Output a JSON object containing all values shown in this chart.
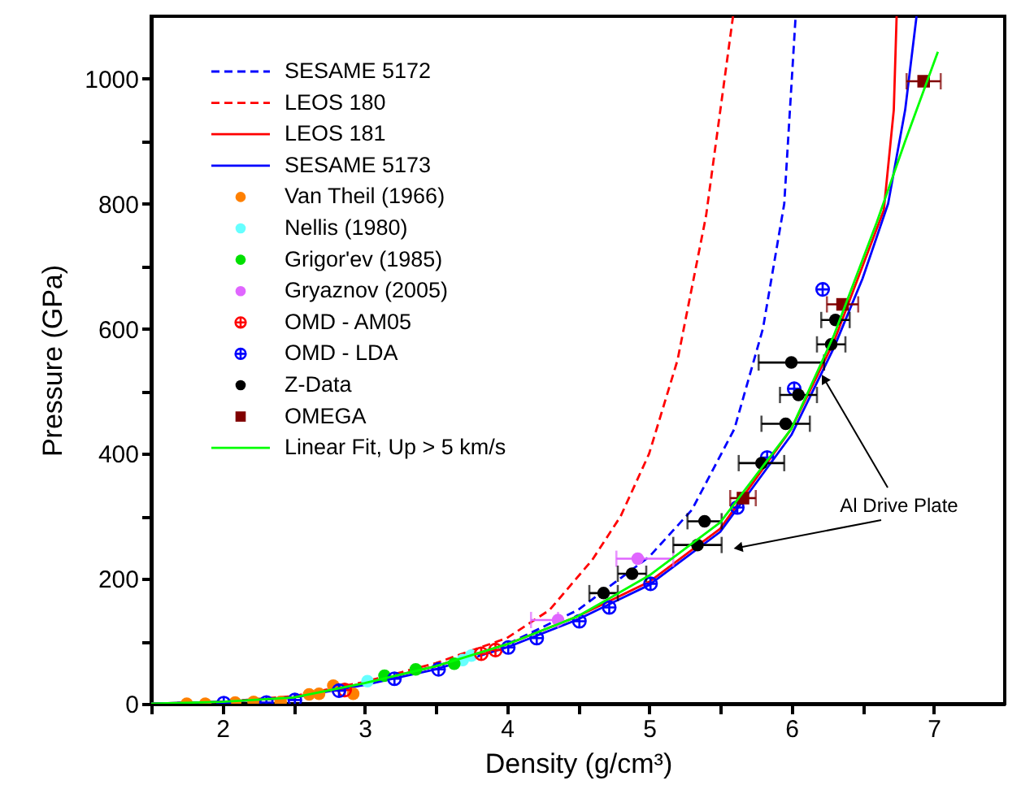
{
  "chart_data": {
    "type": "scatter",
    "xlabel": "Density (g/cm³)",
    "ylabel": "Pressure (GPa)",
    "xlim": [
      1.5,
      7.5
    ],
    "ylim": [
      0,
      1100
    ],
    "xticks": [
      {
        "value": 1.5,
        "label": null
      },
      2,
      {
        "value": 2.5,
        "label": null
      },
      3,
      {
        "value": 3.5,
        "label": null
      },
      4,
      {
        "value": 4.5,
        "label": null
      },
      5,
      {
        "value": 5.5,
        "label": null
      },
      6,
      {
        "value": 6.5,
        "label": null
      },
      7
    ],
    "yticks": [
      0,
      {
        "value": 100,
        "label": null
      },
      200,
      {
        "value": 300,
        "label": null
      },
      400,
      {
        "value": 500,
        "label": null
      },
      600,
      {
        "value": 700,
        "label": null
      },
      800,
      {
        "value": 900,
        "label": null
      },
      1000
    ],
    "grid": false,
    "legend": "top left",
    "annotations": [
      {
        "text": "Al Drive Plate",
        "x": 6.23,
        "y": 520
      }
    ],
    "series": [
      {
        "name": "SESAME 5172",
        "type": "line",
        "line_style": "dashed",
        "color": "#0000ff",
        "x": [
          1.5,
          2,
          2.5,
          3,
          3.5,
          4,
          4.5,
          5,
          5.3,
          5.6,
          5.8,
          5.95,
          6.03
        ],
        "values": [
          0,
          3,
          10,
          33,
          60,
          95,
          150,
          235,
          310,
          440,
          600,
          800,
          1100
        ]
      },
      {
        "name": "LEOS 180",
        "type": "line",
        "line_style": "dashed",
        "color": "#ff0000",
        "x": [
          1.5,
          2,
          2.5,
          3,
          3.5,
          4,
          4.3,
          4.6,
          4.8,
          5.0,
          5.2,
          5.4,
          5.59
        ],
        "values": [
          0,
          3,
          12,
          35,
          65,
          105,
          150,
          230,
          300,
          400,
          550,
          780,
          1100
        ]
      },
      {
        "name": "LEOS 181",
        "type": "line",
        "line_style": "solid",
        "color": "#ff0000",
        "x": [
          1.5,
          2,
          2.5,
          3,
          3.5,
          4,
          4.5,
          5,
          5.5,
          6,
          6.3,
          6.5,
          6.65,
          6.72,
          6.74
        ],
        "values": [
          0,
          3,
          10,
          33,
          60,
          95,
          140,
          195,
          280,
          440,
          580,
          700,
          790,
          950,
          1100
        ]
      },
      {
        "name": "SESAME 5173",
        "type": "line",
        "line_style": "solid",
        "color": "#0000ff",
        "x": [
          1.5,
          2,
          2.5,
          3,
          3.5,
          4,
          4.5,
          5,
          5.5,
          6,
          6.3,
          6.5,
          6.68,
          6.8,
          6.88
        ],
        "values": [
          0,
          3,
          10,
          30,
          55,
          90,
          135,
          190,
          275,
          430,
          570,
          680,
          800,
          950,
          1100
        ]
      },
      {
        "name": "Van Theil (1966)",
        "type": "scatter",
        "marker": "circle",
        "color": "#ff8000",
        "x": [
          1.75,
          1.88,
          2.09,
          2.22,
          2.41,
          2.61,
          2.68,
          2.78,
          2.92
        ],
        "values": [
          0,
          0,
          2,
          3,
          3,
          15,
          16,
          29,
          16
        ]
      },
      {
        "name": "Nellis (1980)",
        "type": "scatter",
        "marker": "circle",
        "color": "#66ffff",
        "x": [
          3.02,
          3.69,
          3.75
        ],
        "values": [
          36,
          70,
          77
        ]
      },
      {
        "name": "Grigor'ev (1985)",
        "type": "scatter",
        "marker": "circle",
        "color": "#00e000",
        "x": [
          3.14,
          3.36,
          3.63
        ],
        "values": [
          45,
          55,
          64
        ]
      },
      {
        "name": "Gryaznov (2005)",
        "type": "scatter",
        "marker": "circle",
        "color": "#e066ff",
        "x": [
          4.36,
          4.92
        ],
        "values": [
          134,
          232
        ],
        "xerrors": [
          [
            4.17,
            4.36
          ],
          [
            4.77,
            5.17
          ]
        ]
      },
      {
        "name": "OMD - AM05",
        "type": "scatter",
        "marker": "cross",
        "color": "#ff0000",
        "x": [
          2.86,
          3.82,
          3.92
        ],
        "values": [
          22,
          80,
          86
        ]
      },
      {
        "name": "OMD - LDA",
        "type": "scatter",
        "marker": "cross",
        "color": "#0000ff",
        "x": [
          2.01,
          2.31,
          2.51,
          2.82,
          3.21,
          3.52,
          4.01,
          4.21,
          4.51,
          4.72,
          5.01,
          5.62,
          5.83,
          6.02,
          6.22
        ],
        "values": [
          1,
          2,
          6,
          21,
          40,
          55,
          90,
          105,
          132,
          154,
          192,
          314,
          394,
          504,
          663
        ]
      },
      {
        "name": "Z-Data",
        "type": "scatter",
        "marker": "circle",
        "color": "#000000",
        "x": [
          4.68,
          4.88,
          5.34,
          5.39,
          5.79,
          5.96,
          6.05,
          6.0,
          6.28,
          6.31
        ],
        "values": [
          177,
          208,
          254,
          292,
          385,
          448,
          494,
          546,
          575,
          614
        ],
        "xerrors": [
          0.1,
          0.1,
          0.17,
          0.12,
          0.16,
          0.17,
          0.13,
          0.23,
          0.1,
          0.1
        ]
      },
      {
        "name": "OMEGA",
        "type": "scatter",
        "marker": "square",
        "color": "#800000",
        "x": [
          5.66,
          6.36,
          6.93
        ],
        "values": [
          329,
          639,
          996
        ],
        "xerrors": [
          0.09,
          0.11,
          0.12
        ]
      },
      {
        "name": "Linear Fit, Up > 5 km/s",
        "type": "line",
        "line_style": "solid",
        "color": "#00ff00",
        "x": [
          1.5,
          2,
          2.5,
          3,
          3.5,
          4,
          4.5,
          5,
          5.5,
          6,
          6.3,
          6.6,
          6.8,
          7.03
        ],
        "values": [
          0,
          3,
          10,
          33,
          60,
          95,
          140,
          205,
          290,
          440,
          590,
          770,
          900,
          1043
        ]
      }
    ]
  }
}
